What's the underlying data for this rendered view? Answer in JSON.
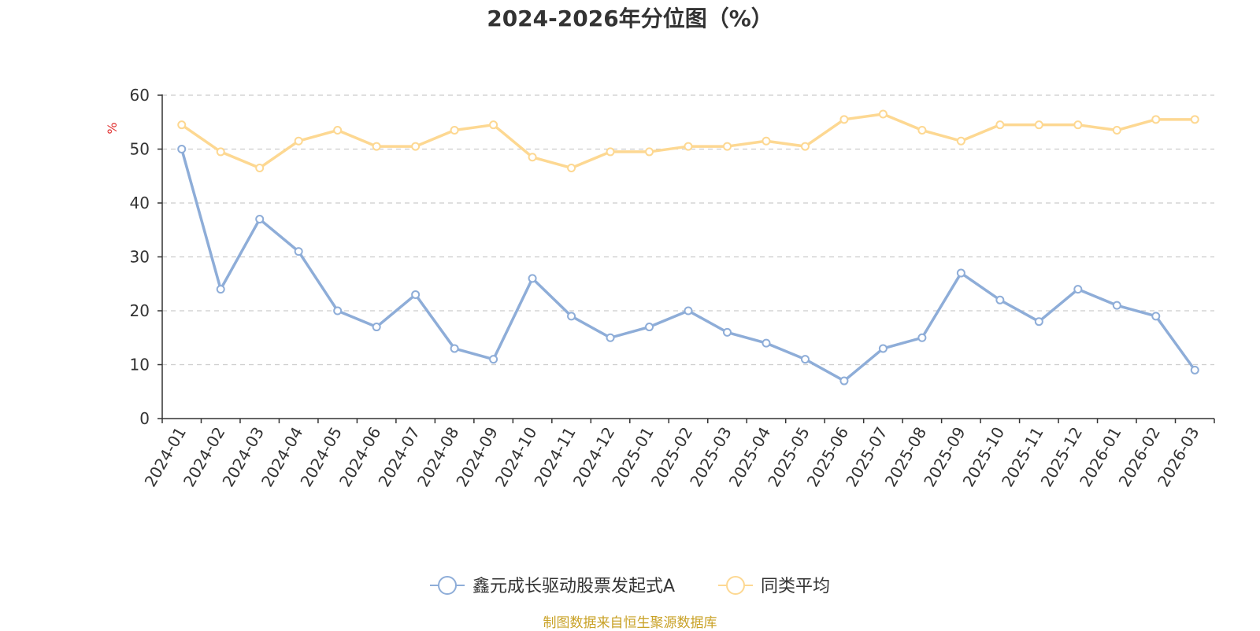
{
  "chart_data": {
    "type": "line",
    "title": "2024-2026年分位图（%）",
    "ylabel": "%",
    "xlabel": "",
    "ylim": [
      0,
      60
    ],
    "yticks": [
      0,
      10,
      20,
      30,
      40,
      50,
      60
    ],
    "grid": true,
    "legend_position": "bottom-center",
    "categories": [
      "2024-01",
      "2024-02",
      "2024-03",
      "2024-04",
      "2024-05",
      "2024-06",
      "2024-07",
      "2024-08",
      "2024-09",
      "2024-10",
      "2024-11",
      "2024-12",
      "2025-01",
      "2025-02",
      "2025-03",
      "2025-04",
      "2025-05",
      "2025-06",
      "2025-07",
      "2025-08",
      "2025-09",
      "2025-10",
      "2025-11",
      "2025-12",
      "2026-01",
      "2026-02",
      "2026-03"
    ],
    "series": [
      {
        "name": "鑫元成长驱动股票发起式A",
        "color": "#8eadd8",
        "values": [
          50,
          24,
          37,
          31,
          20,
          17,
          23,
          13,
          11,
          26,
          19,
          15,
          17,
          20,
          16,
          14,
          11,
          7,
          13,
          15,
          27,
          22,
          18,
          24,
          21,
          19,
          9
        ]
      },
      {
        "name": "同类平均",
        "color": "#fdd892",
        "values": [
          54.5,
          49.5,
          46.5,
          51.5,
          53.5,
          50.5,
          50.5,
          53.5,
          54.5,
          48.5,
          46.5,
          49.5,
          49.5,
          50.5,
          50.5,
          51.5,
          50.5,
          55.5,
          56.5,
          53.5,
          51.5,
          54.5,
          54.5,
          54.5,
          53.5,
          55.5,
          55.5
        ]
      }
    ]
  },
  "source_note": "制图数据来自恒生聚源数据库"
}
